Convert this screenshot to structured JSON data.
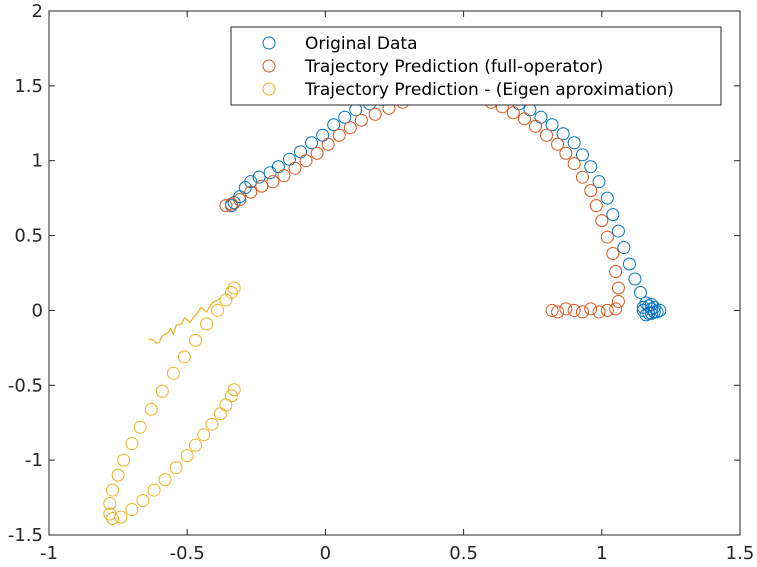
{
  "chart_data": {
    "type": "scatter",
    "title": "",
    "xlabel": "",
    "ylabel": "",
    "xlim": [
      -1,
      1.5
    ],
    "ylim": [
      -1.5,
      2
    ],
    "xticks": [
      "-1",
      "-0.5",
      "0",
      "0.5",
      "1",
      "1.5"
    ],
    "yticks": [
      "-1.5",
      "-1",
      "-0.5",
      "0",
      "0.5",
      "1",
      "1.5",
      "2"
    ],
    "grid": false,
    "legend_position": "top-right",
    "series": [
      {
        "name": "Original Data",
        "color": "#0072BD",
        "marker": "circle",
        "points": [
          [
            -0.34,
            0.7
          ],
          [
            -0.33,
            0.72
          ],
          [
            -0.31,
            0.76
          ],
          [
            -0.29,
            0.82
          ],
          [
            -0.27,
            0.86
          ],
          [
            -0.24,
            0.89
          ],
          [
            -0.2,
            0.92
          ],
          [
            -0.17,
            0.96
          ],
          [
            -0.13,
            1.01
          ],
          [
            -0.09,
            1.06
          ],
          [
            -0.05,
            1.12
          ],
          [
            -0.01,
            1.17
          ],
          [
            0.03,
            1.24
          ],
          [
            0.07,
            1.29
          ],
          [
            0.11,
            1.34
          ],
          [
            0.16,
            1.38
          ],
          [
            0.21,
            1.41
          ],
          [
            0.26,
            1.44
          ],
          [
            0.31,
            1.46
          ],
          [
            0.62,
            1.45
          ],
          [
            0.66,
            1.42
          ],
          [
            0.7,
            1.38
          ],
          [
            0.74,
            1.34
          ],
          [
            0.78,
            1.29
          ],
          [
            0.82,
            1.24
          ],
          [
            0.86,
            1.18
          ],
          [
            0.9,
            1.12
          ],
          [
            0.93,
            1.04
          ],
          [
            0.96,
            0.96
          ],
          [
            0.99,
            0.86
          ],
          [
            1.02,
            0.75
          ],
          [
            1.04,
            0.64
          ],
          [
            1.06,
            0.53
          ],
          [
            1.08,
            0.42
          ],
          [
            1.1,
            0.31
          ],
          [
            1.12,
            0.21
          ],
          [
            1.14,
            0.12
          ],
          [
            1.16,
            0.05
          ],
          [
            1.18,
            0.01
          ],
          [
            1.2,
            -0.01
          ],
          [
            1.19,
            0.02
          ],
          [
            1.17,
            -0.02
          ],
          [
            1.15,
            0.0
          ],
          [
            1.18,
            0.04
          ],
          [
            1.21,
            0.0
          ],
          [
            1.16,
            -0.03
          ],
          [
            1.19,
            -0.01
          ],
          [
            1.17,
            0.03
          ],
          [
            1.15,
            0.02
          ],
          [
            1.18,
            -0.02
          ]
        ]
      },
      {
        "name": "Trajectory Prediction (full-operator)",
        "color": "#D95319",
        "marker": "circle",
        "points": [
          [
            -0.36,
            0.7
          ],
          [
            -0.34,
            0.71
          ],
          [
            -0.31,
            0.74
          ],
          [
            -0.27,
            0.79
          ],
          [
            -0.23,
            0.83
          ],
          [
            -0.19,
            0.86
          ],
          [
            -0.15,
            0.9
          ],
          [
            -0.11,
            0.95
          ],
          [
            -0.07,
            1.0
          ],
          [
            -0.03,
            1.05
          ],
          [
            0.01,
            1.11
          ],
          [
            0.05,
            1.17
          ],
          [
            0.09,
            1.22
          ],
          [
            0.13,
            1.27
          ],
          [
            0.18,
            1.31
          ],
          [
            0.23,
            1.35
          ],
          [
            0.28,
            1.39
          ],
          [
            0.6,
            1.39
          ],
          [
            0.64,
            1.36
          ],
          [
            0.68,
            1.32
          ],
          [
            0.72,
            1.28
          ],
          [
            0.76,
            1.23
          ],
          [
            0.8,
            1.17
          ],
          [
            0.84,
            1.11
          ],
          [
            0.87,
            1.05
          ],
          [
            0.9,
            0.98
          ],
          [
            0.93,
            0.89
          ],
          [
            0.96,
            0.8
          ],
          [
            0.98,
            0.7
          ],
          [
            1.0,
            0.6
          ],
          [
            1.02,
            0.49
          ],
          [
            1.04,
            0.38
          ],
          [
            1.05,
            0.26
          ],
          [
            1.06,
            0.15
          ],
          [
            1.06,
            0.06
          ],
          [
            1.05,
            0.01
          ],
          [
            1.02,
            0.0
          ],
          [
            0.99,
            -0.01
          ],
          [
            0.96,
            0.01
          ],
          [
            0.93,
            -0.01
          ],
          [
            0.9,
            0.0
          ],
          [
            0.87,
            0.01
          ],
          [
            0.84,
            -0.01
          ],
          [
            0.82,
            0.0
          ]
        ]
      },
      {
        "name": "Trajectory Prediction - (Eigen aproximation)",
        "color": "#EDB120",
        "marker": "circle",
        "points": [
          [
            -0.33,
            -0.53
          ],
          [
            -0.34,
            -0.57
          ],
          [
            -0.36,
            -0.63
          ],
          [
            -0.38,
            -0.69
          ],
          [
            -0.41,
            -0.76
          ],
          [
            -0.44,
            -0.83
          ],
          [
            -0.47,
            -0.9
          ],
          [
            -0.5,
            -0.97
          ],
          [
            -0.54,
            -1.05
          ],
          [
            -0.58,
            -1.13
          ],
          [
            -0.62,
            -1.2
          ],
          [
            -0.66,
            -1.27
          ],
          [
            -0.7,
            -1.33
          ],
          [
            -0.74,
            -1.38
          ],
          [
            -0.77,
            -1.39
          ],
          [
            -0.78,
            -1.36
          ],
          [
            -0.78,
            -1.29
          ],
          [
            -0.77,
            -1.2
          ],
          [
            -0.75,
            -1.1
          ],
          [
            -0.73,
            -1.0
          ],
          [
            -0.7,
            -0.89
          ],
          [
            -0.67,
            -0.78
          ],
          [
            -0.63,
            -0.66
          ],
          [
            -0.59,
            -0.54
          ],
          [
            -0.55,
            -0.42
          ],
          [
            -0.51,
            -0.31
          ],
          [
            -0.47,
            -0.2
          ],
          [
            -0.43,
            -0.09
          ],
          [
            -0.39,
            0.0
          ],
          [
            -0.36,
            0.07
          ],
          [
            -0.34,
            0.12
          ],
          [
            -0.33,
            0.15
          ]
        ]
      }
    ],
    "annotation_line": {
      "color": "#EDB120",
      "points": [
        [
          -0.64,
          -0.19
        ],
        [
          -0.62,
          -0.2
        ],
        [
          -0.61,
          -0.22
        ],
        [
          -0.6,
          -0.21
        ],
        [
          -0.59,
          -0.17
        ],
        [
          -0.57,
          -0.15
        ],
        [
          -0.56,
          -0.12
        ],
        [
          -0.55,
          -0.16
        ],
        [
          -0.54,
          -0.1
        ],
        [
          -0.52,
          -0.09
        ],
        [
          -0.51,
          -0.05
        ],
        [
          -0.49,
          -0.08
        ],
        [
          -0.47,
          -0.03
        ],
        [
          -0.46,
          -0.01
        ],
        [
          -0.45,
          0.02
        ],
        [
          -0.43,
          -0.01
        ],
        [
          -0.41,
          0.05
        ],
        [
          -0.38,
          0.08
        ]
      ]
    }
  }
}
